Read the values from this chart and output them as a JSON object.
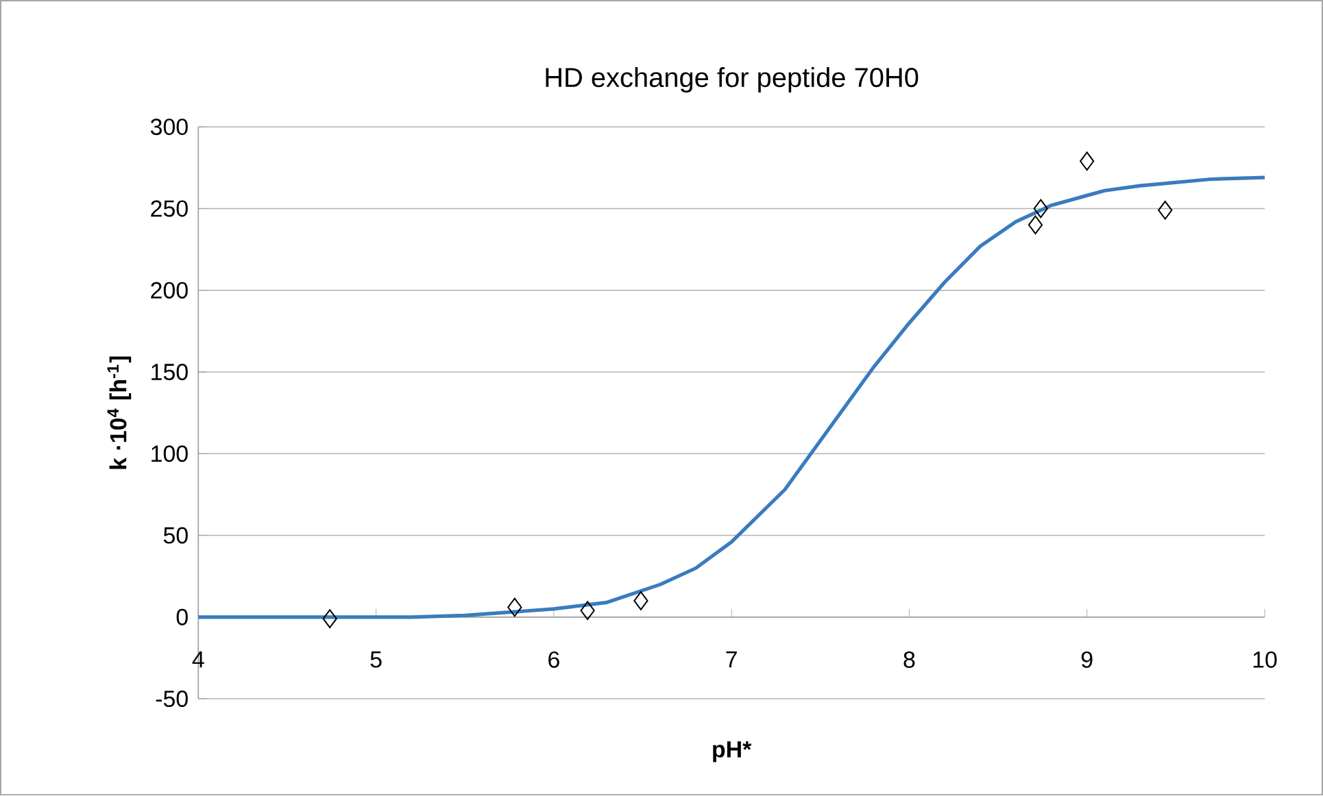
{
  "chart_data": {
    "type": "line",
    "title": "HD exchange for peptide 70H0",
    "xlabel": "pH*",
    "ylabel": "k ·10$^{4}$ [h$^{-1}$]",
    "xlim": [
      4,
      10
    ],
    "xticks": [
      4,
      5,
      6,
      7,
      8,
      9,
      10
    ],
    "ylim": [
      -50,
      300
    ],
    "yticks": [
      -50,
      0,
      50,
      100,
      150,
      200,
      250,
      300
    ],
    "grid": "y",
    "series": [
      {
        "type": "scatter",
        "marker": "diamond",
        "color": "#000000",
        "x": [
          4.74,
          5.78,
          6.19,
          6.49,
          8.71,
          8.74,
          9.0,
          9.44
        ],
        "values": [
          -1,
          6,
          4,
          10,
          240,
          250,
          279,
          249
        ]
      },
      {
        "marker": "none",
        "line_style": "solid",
        "color": "#3a7bbf",
        "x": [
          4,
          5.2,
          5.5,
          6,
          6.3,
          6.6,
          6.8,
          7,
          7.3,
          7.5,
          7.8,
          8,
          8.2,
          8.4,
          8.6,
          8.8,
          9,
          9.1,
          9.3,
          9.5,
          9.7,
          10
        ],
        "values": [
          0,
          0,
          1,
          5,
          9,
          20,
          30,
          46,
          78,
          108,
          153,
          180,
          205,
          227,
          242,
          252,
          258,
          261,
          264,
          266,
          268,
          269
        ]
      }
    ]
  }
}
